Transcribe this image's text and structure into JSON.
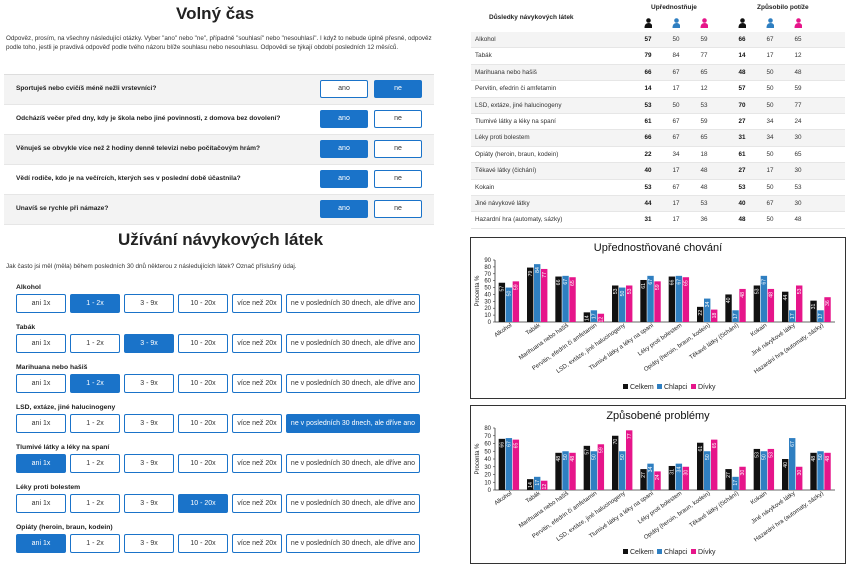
{
  "free_time": {
    "title": "Volný čas",
    "intro": "Odpověz, prosím, na všechny následující otázky. Vyber \"ano\" nebo \"ne\", případně \"souhlasí\" nebo \"nesouhlasí\". I když to nebude úplně přesné, odpověz podle toho, jestli je pravdivá odpověď podle tvého názoru blíže souhlasu nebo nesouhlasu. Odpovědi se týkají období posledních 12 měsíců.",
    "yes_label": "ano",
    "no_label": "ne",
    "questions": [
      {
        "text": "Sportuješ nebo cvičíš méně nežli vrstevníci?",
        "answer": "ne"
      },
      {
        "text": "Odcházíš večer před dny, kdy je škola nebo jiné povinnosti, z domova bez dovolení?",
        "answer": "ano"
      },
      {
        "text": "Věnuješ se obvykle více než 2 hodiny denně televizi nebo počítačovým hrám?",
        "answer": "ano"
      },
      {
        "text": "Vědí rodiče, kdo je na večírcích, kterých ses v poslední době účastnila?",
        "answer": "ano"
      },
      {
        "text": "Unavíš se rychle při námaze?",
        "answer": "ano"
      }
    ]
  },
  "substances": {
    "title": "Užívání návykových látek",
    "intro": "Jak často jsi měl (měla) během posledních 30 dnů některou z následujících látek? Označ příslušný údaj.",
    "options": [
      "ani 1x",
      "1 - 2x",
      "3 - 9x",
      "10 - 20x",
      "více než 20x",
      "ne v posledních 30 dnech, ale dříve ano"
    ],
    "items": [
      {
        "label": "Alkohol",
        "selected": 1
      },
      {
        "label": "Tabák",
        "selected": 2
      },
      {
        "label": "Marihuana nebo hašiš",
        "selected": 1
      },
      {
        "label": "LSD, extáze, jiné halucinogeny",
        "selected": 5
      },
      {
        "label": "Tlumivé látky a léky na spaní",
        "selected": 0
      },
      {
        "label": "Léky proti bolestem",
        "selected": 3
      },
      {
        "label": "Opiáty (heroin, braun, kodein)",
        "selected": 0
      }
    ]
  },
  "table": {
    "col_main": "Důsledky návykových látek",
    "group1": "Upřednostňuje",
    "group2": "Způsobilo potíže",
    "rows": [
      {
        "name": "Alkohol",
        "v": [
          57,
          50,
          59,
          66,
          67,
          65
        ]
      },
      {
        "name": "Tabák",
        "v": [
          79,
          84,
          77,
          14,
          17,
          12
        ]
      },
      {
        "name": "Marihuana nebo hašiš",
        "v": [
          66,
          67,
          65,
          48,
          50,
          48
        ]
      },
      {
        "name": "Pervitin, efedrin či amfetamin",
        "v": [
          14,
          17,
          12,
          57,
          50,
          59
        ]
      },
      {
        "name": "LSD, extáze, jiné halucinogeny",
        "v": [
          53,
          50,
          53,
          70,
          50,
          77
        ]
      },
      {
        "name": "Tlumivé látky a léky na spaní",
        "v": [
          61,
          67,
          59,
          27,
          34,
          24
        ]
      },
      {
        "name": "Léky proti bolestem",
        "v": [
          66,
          67,
          65,
          31,
          34,
          30
        ]
      },
      {
        "name": "Opiáty (heroin, braun, kodein)",
        "v": [
          22,
          34,
          18,
          61,
          50,
          65
        ]
      },
      {
        "name": "Těkavé látky (čichání)",
        "v": [
          40,
          17,
          48,
          27,
          17,
          30
        ]
      },
      {
        "name": "Kokain",
        "v": [
          53,
          67,
          48,
          53,
          50,
          53
        ]
      },
      {
        "name": "Jiné návykové látky",
        "v": [
          44,
          17,
          53,
          40,
          67,
          30
        ]
      },
      {
        "name": "Hazardní hra (automaty, sázky)",
        "v": [
          31,
          17,
          36,
          48,
          50,
          48
        ]
      }
    ]
  },
  "colors": {
    "total": "#111111",
    "boys": "#2f7fc1",
    "girls": "#e6158a",
    "accent": "#1a73c9"
  },
  "chart_data": [
    {
      "type": "bar",
      "title": "Upřednostňované chování",
      "ylabel": "Procenta %",
      "ylim": [
        0,
        90
      ],
      "yticks": [
        0,
        10,
        20,
        30,
        40,
        50,
        60,
        70,
        80,
        90
      ],
      "categories": [
        "Alkohol",
        "Tabák",
        "Marihuana nebo hašiš",
        "Pervitin, efedrin či amfetamin",
        "LSD, extáze, jiné halucinogeny",
        "Tlumivé látky a léky na spaní",
        "Léky proti bolestem",
        "Opiáty (heroin, braun, kodein)",
        "Těkavé látky (čichání)",
        "Kokain",
        "Jiné návykové látky",
        "Hazardní hra (automaty, sázky)"
      ],
      "series": [
        {
          "name": "Celkem",
          "values": [
            57,
            79,
            66,
            14,
            53,
            61,
            66,
            22,
            40,
            53,
            44,
            31
          ]
        },
        {
          "name": "Chlapci",
          "values": [
            50,
            84,
            67,
            17,
            50,
            67,
            67,
            34,
            17,
            67,
            17,
            17
          ]
        },
        {
          "name": "Dívky",
          "values": [
            59,
            77,
            65,
            12,
            53,
            59,
            65,
            18,
            48,
            48,
            53,
            36
          ]
        }
      ],
      "legend": "bottom"
    },
    {
      "type": "bar",
      "title": "Způsobené problémy",
      "ylabel": "Procenta %",
      "ylim": [
        0,
        80
      ],
      "yticks": [
        0,
        10,
        20,
        30,
        40,
        50,
        60,
        70,
        80
      ],
      "categories": [
        "Alkohol",
        "Tabák",
        "Marihuana nebo hašiš",
        "Pervitin, efedrin či amfetamin",
        "LSD, extáze, jiné halucinogeny",
        "Tlumivé látky a léky na spaní",
        "Léky proti bolestem",
        "Opiáty (heroin, braun, kodein)",
        "Těkavé látky (čichání)",
        "Kokain",
        "Jiné návykové látky",
        "Hazardní hra (automaty, sázky)"
      ],
      "series": [
        {
          "name": "Celkem",
          "values": [
            66,
            14,
            48,
            57,
            70,
            27,
            31,
            61,
            27,
            53,
            40,
            48
          ]
        },
        {
          "name": "Chlapci",
          "values": [
            67,
            17,
            50,
            50,
            50,
            34,
            34,
            50,
            17,
            50,
            67,
            50
          ]
        },
        {
          "name": "Dívky",
          "values": [
            65,
            12,
            48,
            59,
            77,
            24,
            30,
            65,
            30,
            53,
            30,
            48
          ]
        }
      ],
      "legend": "bottom"
    }
  ]
}
